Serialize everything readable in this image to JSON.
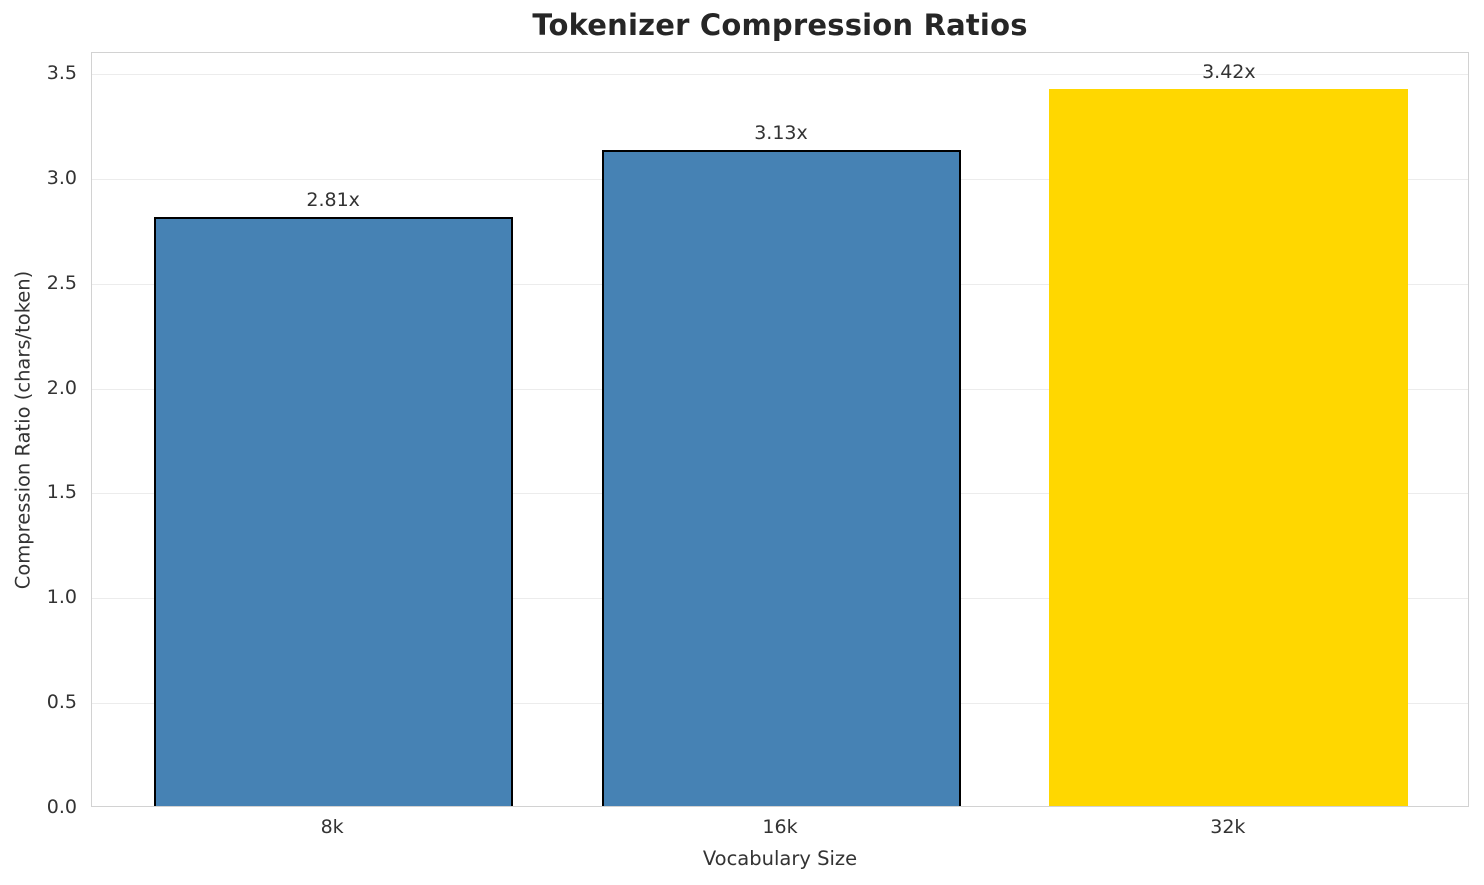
{
  "chart_data": {
    "type": "bar",
    "title": "Tokenizer Compression Ratios",
    "xlabel": "Vocabulary Size",
    "ylabel": "Compression Ratio (chars/token)",
    "categories": [
      "8k",
      "16k",
      "32k"
    ],
    "values": [
      2.81,
      3.13,
      3.42
    ],
    "bar_labels": [
      "2.81x",
      "3.13x",
      "3.42x"
    ],
    "bar_colors": [
      "#4682b4",
      "#4682b4",
      "#ffd700"
    ],
    "bar_edge_colors": [
      "#000000",
      "#000000",
      "none"
    ],
    "yticks": [
      0.0,
      0.5,
      1.0,
      1.5,
      2.0,
      2.5,
      3.0,
      3.5
    ],
    "ytick_labels": [
      "0.0",
      "0.5",
      "1.0",
      "1.5",
      "2.0",
      "2.5",
      "3.0",
      "3.5"
    ],
    "ylim": [
      0,
      3.6
    ],
    "grid": true,
    "legend": null,
    "colors": {
      "title_text": "#262626",
      "tick_text": "#333333",
      "spine": "#d2d2d2",
      "gridline": "#ececec",
      "background": "#ffffff",
      "bar_blue": "#4682b4",
      "bar_gold": "#ffd700",
      "bar_edge": "#000000"
    }
  }
}
